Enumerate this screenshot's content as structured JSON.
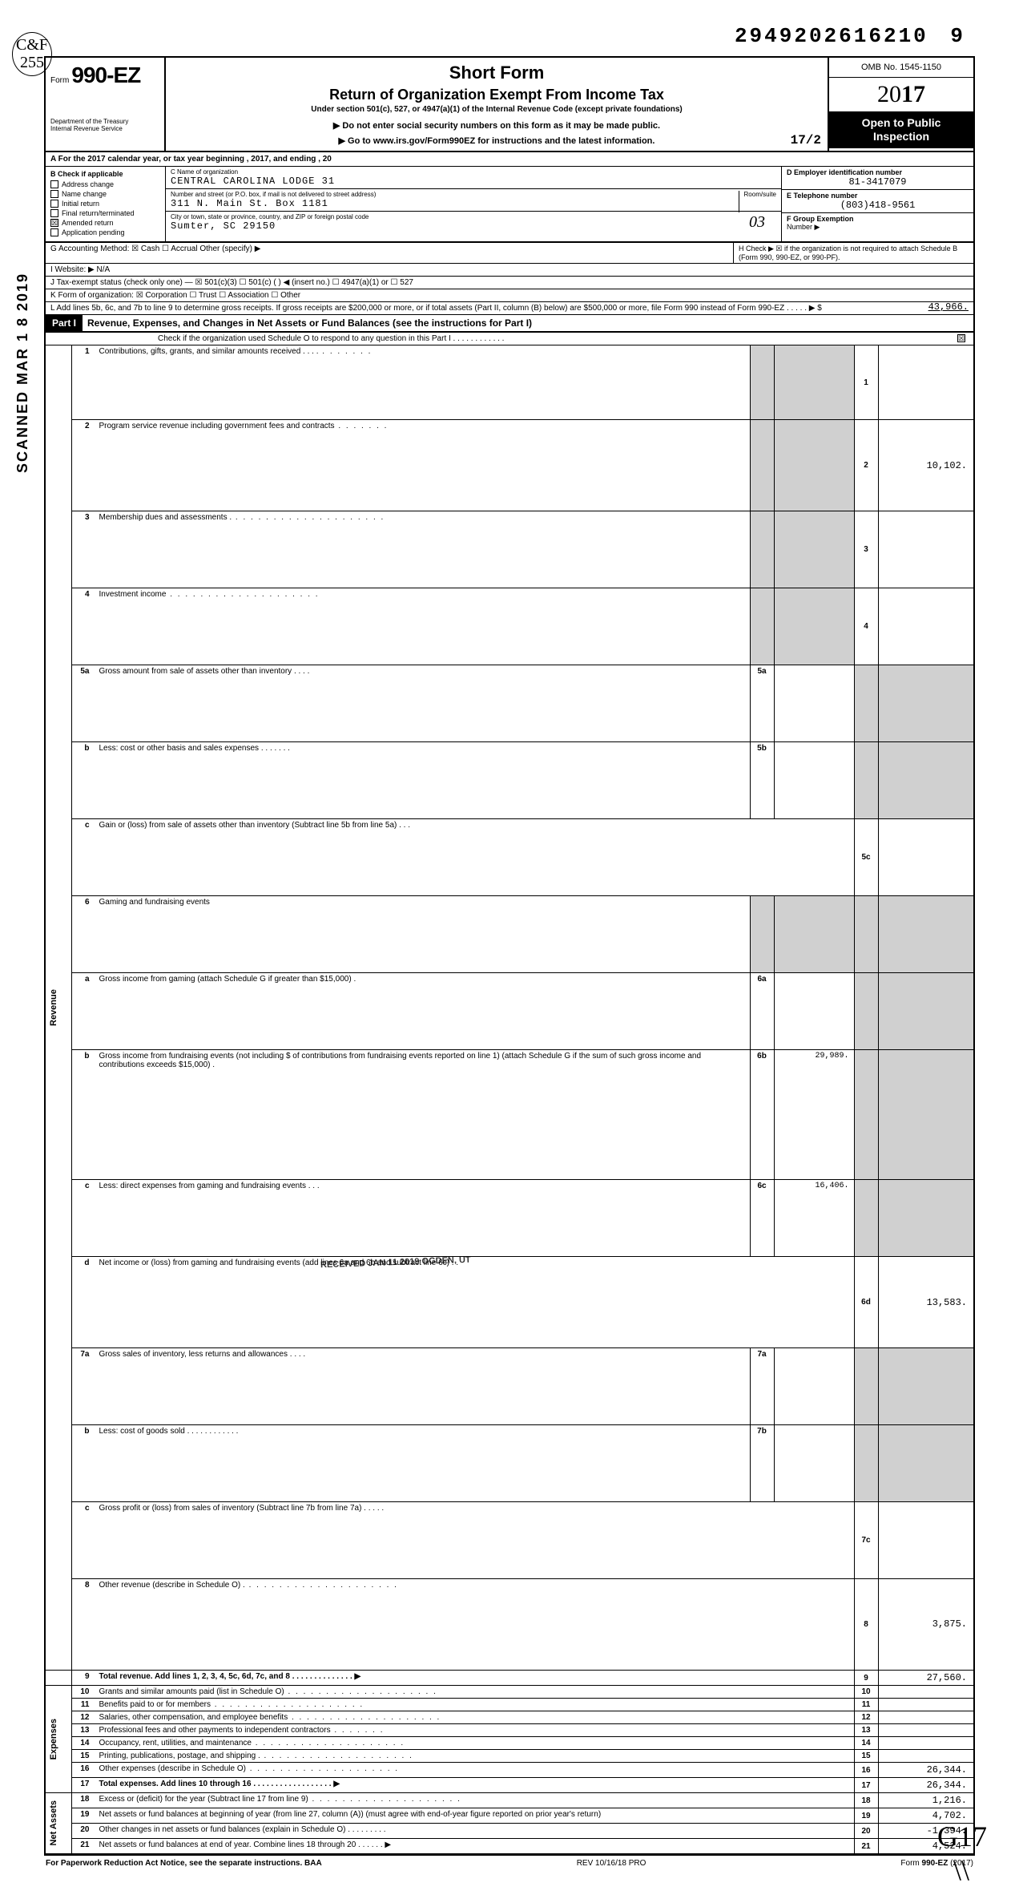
{
  "dln": "29492026162109",
  "topcode": "C&F 255",
  "vside": "SCANNED MAR 1 8 2019",
  "header": {
    "form_prefix": "Form",
    "form_no": "990-EZ",
    "dept": "Department of the Treasury\nInternal Revenue Service",
    "title1": "Short Form",
    "title2": "Return of Organization Exempt From Income Tax",
    "title3": "Under section 501(c), 527, or 4947(a)(1) of the Internal Revenue Code (except private foundations)",
    "title4": "▶ Do not enter social security numbers on this form as it may be made public.",
    "title5": "▶ Go to www.irs.gov/Form990EZ for instructions and the latest information.",
    "omb": "OMB No. 1545-1150",
    "year_outline": "20",
    "year_bold": "17",
    "otp": "Open to Public Inspection",
    "hand_date": "17/2"
  },
  "rowA": "A For the 2017 calendar year, or tax year beginning                                                                                        , 2017, and ending                                              , 20",
  "entity": {
    "B_label": "B Check if applicable",
    "checks": [
      "Address change",
      "Name change",
      "Initial return",
      "Final return/terminated",
      "Amended return",
      "Application pending"
    ],
    "amended_x": "☒",
    "C_label": "C Name of organization",
    "name": "CENTRAL CAROLINA LODGE 31",
    "addr_lbl": "Number and street (or P.O. box, if mail is not delivered to street address)",
    "room_lbl": "Room/suite",
    "addr": "311 N. Main St. Box 1181",
    "city_lbl": "City or town, state or province, country, and ZIP or foreign postal code",
    "city": "Sumter, SC 29150",
    "city_hand": "03",
    "D_label": "D Employer identification number",
    "ein": "81-3417079",
    "E_label": "E Telephone number",
    "phone": "(803)418-9561",
    "F_label": "F Group Exemption",
    "F_label2": "Number ▶"
  },
  "meta": {
    "G": "G Accounting Method:   ☒ Cash   ☐ Accrual   Other (specify) ▶",
    "H": "H Check ▶ ☒ if the organization is not required to attach Schedule B (Form 990, 990-EZ, or 990-PF).",
    "I": "I  Website: ▶   N/A",
    "J": "J Tax-exempt status (check only one) — ☒ 501(c)(3)   ☐ 501(c) (     ) ◀ (insert no.) ☐ 4947(a)(1) or  ☐ 527",
    "K": "K Form of organization:  ☒ Corporation   ☐ Trust   ☐ Association   ☐ Other",
    "L": "L Add lines 5b, 6c, and 7b to line 9 to determine gross receipts. If gross receipts are $200,000 or more, or if total assets (Part II, column (B) below) are $500,000 or more, file Form 990 instead of Form 990-EZ   .    .    .    .    .   ▶  $",
    "L_amt": "43,966."
  },
  "part1": {
    "label": "Part I",
    "title": "Revenue, Expenses, and Changes in Net Assets or Fund Balances (see the instructions for Part I)",
    "schedo": "Check if the organization used Schedule O to respond to any question in this Part I .  .  .  .  .  .  .  .  .  .  .  .",
    "schedo_x": "☒"
  },
  "sidelabels": {
    "rev": "Revenue",
    "exp": "Expenses",
    "na": "Net Assets"
  },
  "lines": {
    "1": {
      "d": "Contributions, gifts, grants, and similar amounts received .    .    .    .",
      "a": ""
    },
    "2": {
      "d": "Program service revenue including government fees and contracts",
      "a": "10,102."
    },
    "3": {
      "d": "Membership dues and assessments .",
      "a": ""
    },
    "4": {
      "d": "Investment income",
      "a": ""
    },
    "5a": {
      "d": "Gross amount from sale of assets other than inventory    .    .    .    .",
      "ia": ""
    },
    "5b": {
      "d": "Less: cost or other basis and sales expenses .    .    .    .    .    .    .",
      "ia": ""
    },
    "5c": {
      "d": "Gain or (loss) from sale of assets other than inventory (Subtract line 5b from line 5a) .   .   .",
      "a": ""
    },
    "6": {
      "d": "Gaming and fundraising events"
    },
    "6a": {
      "d": "Gross income from gaming (attach Schedule G if greater than $15,000) .",
      "ia": ""
    },
    "6bpre": "Gross income from fundraising events (not including  $                              of contributions from fundraising events reported on line 1) (attach Schedule G if the sum of such gross income and contributions exceeds $15,000) .",
    "6b": {
      "ia": "29,989."
    },
    "6c": {
      "d": "Less: direct expenses from gaming and fundraising events    .    .    .",
      "ia": "16,406."
    },
    "6d": {
      "d": "Net income or (loss) from gaming and fundraising events (add lines 6a and 6b and subtract line 6c)    .    .",
      "a": "13,583."
    },
    "7a": {
      "d": "Gross sales of inventory, less returns and allowances    .    .    .    .",
      "ia": ""
    },
    "7b": {
      "d": "Less: cost of goods sold .    .    .    .    .    .    .    .    .    .    .    .",
      "ia": ""
    },
    "7c": {
      "d": "Gross profit or (loss) from sales of inventory (Subtract line 7b from line 7a)  .    .    .    .    .",
      "a": ""
    },
    "8": {
      "d": "Other revenue (describe in Schedule O) .",
      "a": "3,875."
    },
    "9": {
      "d": "Total revenue. Add lines 1, 2, 3, 4, 5c, 6d, 7c, and 8   .   .   .   .   .   .   .   .   .   .   .   .   .   .  ▶",
      "a": "27,560."
    },
    "10": {
      "d": "Grants and similar amounts paid (list in Schedule O)",
      "a": ""
    },
    "11": {
      "d": "Benefits paid to or for members",
      "a": ""
    },
    "12": {
      "d": "Salaries, other compensation, and employee benefits",
      "a": ""
    },
    "13": {
      "d": "Professional fees and other payments to independent contractors",
      "a": ""
    },
    "14": {
      "d": "Occupancy, rent, utilities, and maintenance",
      "a": ""
    },
    "15": {
      "d": "Printing, publications, postage, and shipping .",
      "a": ""
    },
    "16": {
      "d": "Other expenses (describe in Schedule O)",
      "a": "26,344."
    },
    "17": {
      "d": "Total expenses. Add lines 10 through 16   .   .   .   .   .   .   .   .   .   .   .   .   .   .   .   .   .   .  ▶",
      "a": "26,344."
    },
    "18": {
      "d": "Excess or (deficit) for the year (Subtract line 17 from line 9)",
      "a": "1,216."
    },
    "19": {
      "d": "Net assets or fund balances at beginning of year (from line 27, column (A)) (must agree with end-of-year figure reported on prior year's return)",
      "a": "4,702."
    },
    "20": {
      "d": "Other changes in net assets or fund balances (explain in Schedule O) .   .   .   .   .   .   .   .   .",
      "a": "-1,394."
    },
    "21": {
      "d": "Net assets or fund balances at end of year. Combine lines 18 through 20    .   .   .   .   .   .  ▶",
      "a": "4,524."
    }
  },
  "stamp": "RECEIVED JAN 11 2019 OGDEN, UT",
  "footer": {
    "left": "For Paperwork Reduction Act Notice, see the separate instructions. BAA",
    "mid": "REV 10/16/18 PRO",
    "right": "Form 990-EZ (2017)"
  },
  "handw": "G17",
  "handw2": "\\\\"
}
